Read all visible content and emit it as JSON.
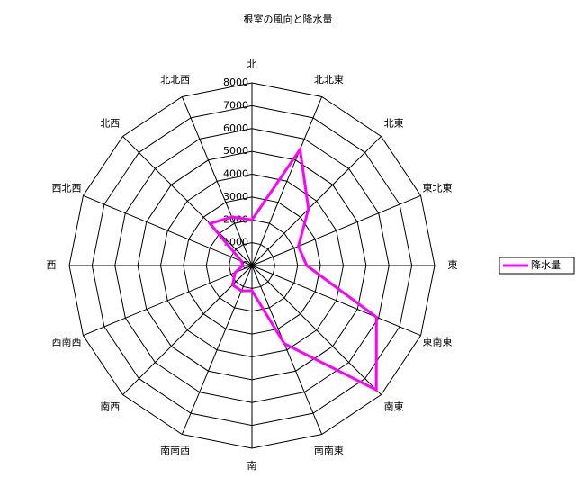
{
  "chart_data": {
    "type": "radar",
    "title": "根室の風向と降水量",
    "categories": [
      "北",
      "北北東",
      "北東",
      "東北東",
      "東",
      "東南東",
      "南東",
      "南南東",
      "南",
      "南南西",
      "南西",
      "西南西",
      "西",
      "西北西",
      "北西",
      "北北西"
    ],
    "series": [
      {
        "name": "降水量",
        "color": "#ff00ff",
        "values": [
          2000,
          5500,
          3500,
          2200,
          2400,
          5900,
          7700,
          3700,
          1100,
          1200,
          1200,
          800,
          400,
          500,
          2600,
          2300
        ]
      }
    ],
    "ylim": [
      0,
      8000
    ],
    "yticks": [
      0,
      1000,
      2000,
      3000,
      4000,
      5000,
      6000,
      7000,
      8000
    ],
    "grid": true
  }
}
